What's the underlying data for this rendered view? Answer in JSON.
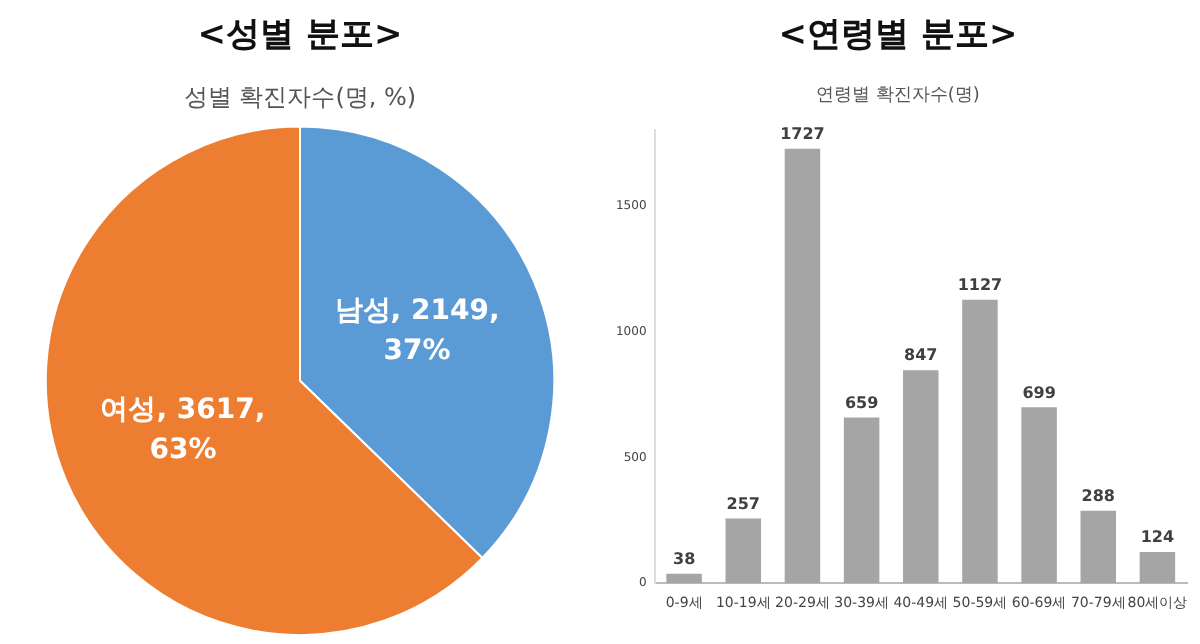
{
  "chart_data": [
    {
      "type": "pie",
      "title": "<성별 분포>",
      "subtitle": "성별 확진자수(명, %)",
      "categories": [
        "남성",
        "여성"
      ],
      "values": [
        2149,
        3617
      ],
      "colors": [
        "#5b9bd5",
        "#ed7d31"
      ],
      "value_labels": [
        "2149, 37%",
        "3617, 63%"
      ]
    },
    {
      "type": "bar",
      "title": "<연령별 분포>",
      "subtitle": "연령별 확진자수(명)",
      "categories": [
        "0-9세",
        "10-19세",
        "20-29세",
        "30-39세",
        "40-49세",
        "50-59세",
        "60-69세",
        "70-79세",
        "80세이상"
      ],
      "values": [
        38,
        257,
        1727,
        659,
        847,
        1127,
        699,
        288,
        124
      ],
      "color": "#a5a5a5",
      "ylim": [
        0,
        1800
      ],
      "yticks": [
        0,
        500,
        1000,
        1500
      ],
      "data_labels": true
    }
  ]
}
